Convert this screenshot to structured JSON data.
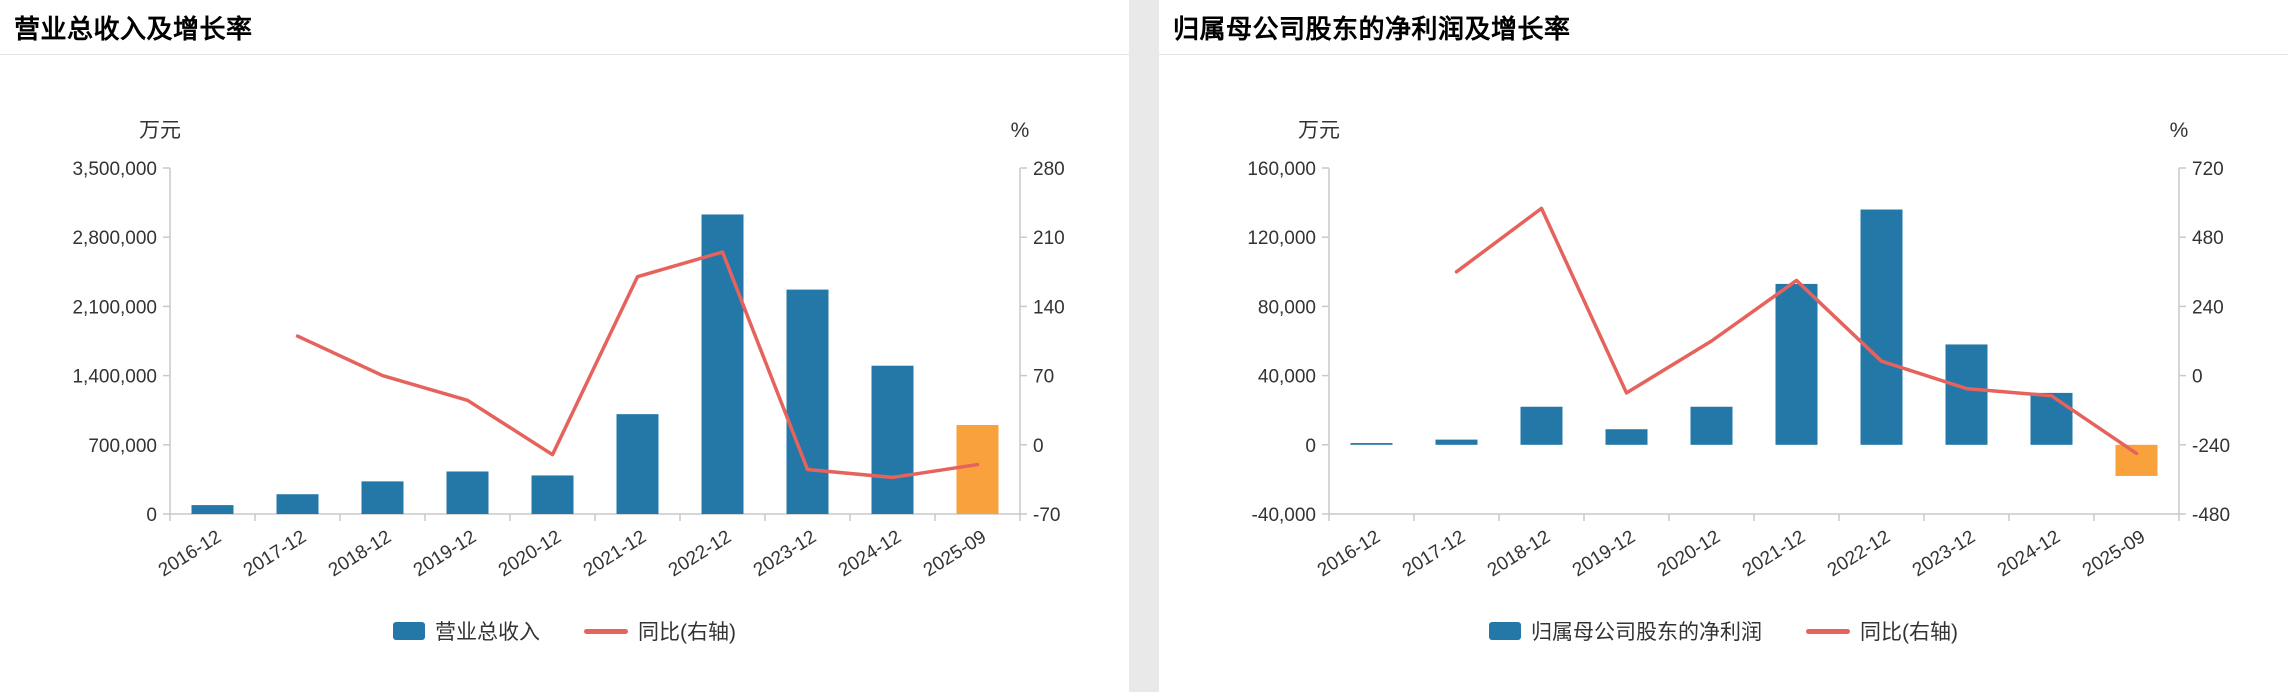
{
  "colors": {
    "bar": "#2478A8",
    "bar_highlight": "#F9A13C",
    "line": "#E5635C",
    "axis_line": "#C9C9C9",
    "tick_text": "#333333",
    "unit_text": "#333333",
    "title_text": "#000000",
    "page_bg": "#E9E9E9",
    "panel_bg": "#FFFFFF",
    "divider": "#E3E3E3"
  },
  "chart_data": [
    {
      "type": "bar+line",
      "title": "营业总收入及增长率",
      "unit_left": "万元",
      "unit_right": "%",
      "categories": [
        "2016-12",
        "2017-12",
        "2018-12",
        "2019-12",
        "2020-12",
        "2021-12",
        "2022-12",
        "2023-12",
        "2024-12",
        "2025-09"
      ],
      "series": [
        {
          "name": "营业总收入",
          "type": "bar",
          "axis": "left",
          "highlight_last": true,
          "values": [
            90000,
            200000,
            330000,
            430000,
            390000,
            1010000,
            3030000,
            2270000,
            1500000,
            900000
          ]
        },
        {
          "name": "同比(右轴)",
          "type": "line",
          "axis": "right",
          "values": [
            null,
            110,
            70,
            45,
            -10,
            170,
            195,
            -25,
            -33,
            -20
          ]
        }
      ],
      "left_axis": {
        "min": 0,
        "max": 3500000,
        "ticks": [
          0,
          700000,
          1400000,
          2100000,
          2800000,
          3500000
        ]
      },
      "right_axis": {
        "min": -70,
        "max": 280,
        "ticks": [
          -70,
          0,
          70,
          140,
          210,
          280
        ]
      },
      "legend": [
        {
          "label": "营业总收入",
          "marker": "bar"
        },
        {
          "label": "同比(右轴)",
          "marker": "line"
        }
      ]
    },
    {
      "type": "bar+line",
      "title": "归属母公司股东的净利润及增长率",
      "unit_left": "万元",
      "unit_right": "%",
      "categories": [
        "2016-12",
        "2017-12",
        "2018-12",
        "2019-12",
        "2020-12",
        "2021-12",
        "2022-12",
        "2023-12",
        "2024-12",
        "2025-09"
      ],
      "series": [
        {
          "name": "归属母公司股东的净利润",
          "type": "bar",
          "axis": "left",
          "highlight_last": true,
          "values": [
            1000,
            3000,
            22000,
            9000,
            22000,
            93000,
            136000,
            58000,
            30000,
            -18000
          ]
        },
        {
          "name": "同比(右轴)",
          "type": "line",
          "axis": "right",
          "values": [
            null,
            360,
            580,
            -60,
            120,
            330,
            50,
            -45,
            -70,
            -270
          ]
        }
      ],
      "left_axis": {
        "min": -40000,
        "max": 160000,
        "ticks": [
          -40000,
          0,
          40000,
          80000,
          120000,
          160000
        ]
      },
      "right_axis": {
        "min": -480,
        "max": 720,
        "ticks": [
          -480,
          -240,
          0,
          240,
          480,
          720
        ]
      },
      "legend": [
        {
          "label": "归属母公司股东的净利润",
          "marker": "bar"
        },
        {
          "label": "同比(右轴)",
          "marker": "line"
        }
      ]
    }
  ]
}
